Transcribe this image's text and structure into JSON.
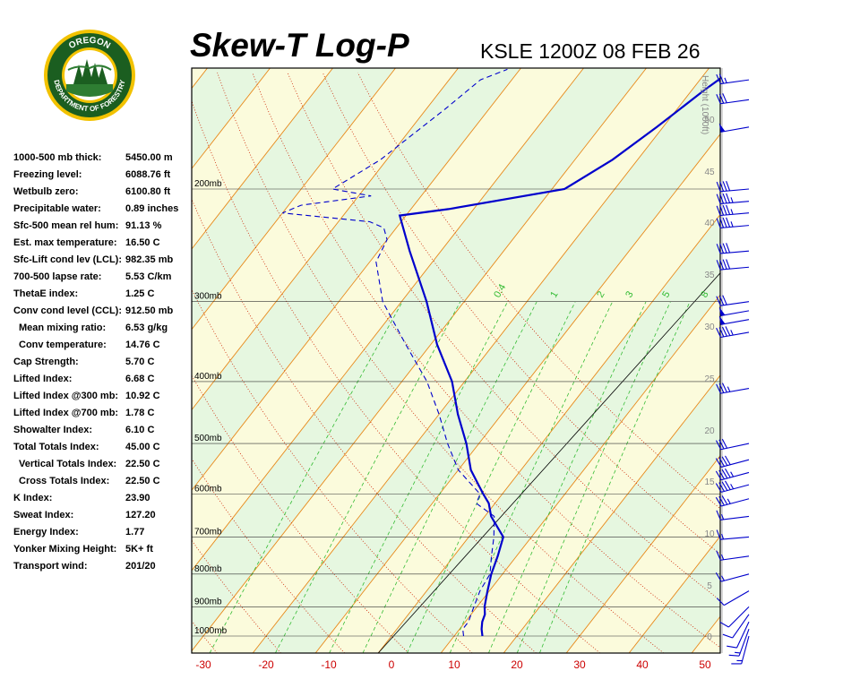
{
  "header": {
    "title": "Skew-T Log-P",
    "subtitle": "KSLE 1200Z 08 FEB 26"
  },
  "logo": {
    "top_text": "OREGON",
    "bottom_text": "DEPARTMENT OF FORESTRY",
    "colors": {
      "ring": "#1b5e20",
      "gold": "#f2c200"
    }
  },
  "stats": [
    {
      "label": "1000-500 mb thick:",
      "value": "5450.00 m",
      "indent": false
    },
    {
      "label": "Freezing level:",
      "value": "6088.76 ft",
      "indent": false
    },
    {
      "label": "Wetbulb zero:",
      "value": "6100.80 ft",
      "indent": false
    },
    {
      "label": "Precipitable water:",
      "value": "0.89 inches",
      "indent": false
    },
    {
      "label": "Sfc-500 mean rel hum:",
      "value": "91.13 %",
      "indent": false
    },
    {
      "label": "Est. max temperature:",
      "value": "16.50 C",
      "indent": false
    },
    {
      "label": "Sfc-Lift cond lev (LCL):",
      "value": "982.35 mb",
      "indent": false
    },
    {
      "label": "700-500 lapse rate:",
      "value": "5.53 C/km",
      "indent": false
    },
    {
      "label": "ThetaE index:",
      "value": "1.25 C",
      "indent": false
    },
    {
      "label": "Conv cond level (CCL):",
      "value": "912.50 mb",
      "indent": false
    },
    {
      "label": "Mean mixing ratio:",
      "value": "6.53 g/kg",
      "indent": true
    },
    {
      "label": "Conv temperature:",
      "value": "14.76 C",
      "indent": true
    },
    {
      "label": "Cap Strength:",
      "value": "5.70 C",
      "indent": false
    },
    {
      "label": "Lifted Index:",
      "value": "6.68 C",
      "indent": false
    },
    {
      "label": "Lifted Index @300 mb:",
      "value": "10.92 C",
      "indent": false
    },
    {
      "label": "Lifted Index @700 mb:",
      "value": "1.78 C",
      "indent": false
    },
    {
      "label": "Showalter Index:",
      "value": "6.10 C",
      "indent": false
    },
    {
      "label": "Total Totals Index:",
      "value": "45.00 C",
      "indent": false
    },
    {
      "label": "Vertical Totals Index:",
      "value": "22.50 C",
      "indent": true
    },
    {
      "label": "Cross Totals Index:",
      "value": "22.50 C",
      "indent": true
    },
    {
      "label": "K Index:",
      "value": "23.90",
      "indent": false
    },
    {
      "label": "Sweat Index:",
      "value": "127.20",
      "indent": false
    },
    {
      "label": "Energy Index:",
      "value": "1.77",
      "indent": false
    },
    {
      "label": "Yonker Mixing Height:",
      "value": "5K+ ft",
      "indent": false
    },
    {
      "label": "Transport wind:",
      "value": "201/20",
      "indent": false
    }
  ],
  "chart_data": {
    "type": "line",
    "title": "Skew-T Log-P",
    "subtitle": "KSLE 1200Z 08 FEB 26",
    "xlabel": "",
    "ylabel": "",
    "x_ticks": [
      "-30",
      "-20",
      "-10",
      "0",
      "10",
      "20",
      "30",
      "40",
      "50"
    ],
    "x_tick_values": [
      -30,
      -20,
      -10,
      0,
      10,
      20,
      30,
      40,
      50
    ],
    "xlim": [
      -31,
      52
    ],
    "pressure_labels": [
      {
        "p": 1000,
        "label": "1000mb"
      },
      {
        "p": 900,
        "label": "900mb"
      },
      {
        "p": 800,
        "label": "800mb"
      },
      {
        "p": 700,
        "label": "700mb"
      },
      {
        "p": 600,
        "label": "600mb"
      },
      {
        "p": 500,
        "label": "500mb"
      },
      {
        "p": 400,
        "label": "400mb"
      },
      {
        "p": 300,
        "label": "300mb"
      },
      {
        "p": 200,
        "label": "200mb"
      }
    ],
    "height_axis": {
      "label": "Height (1000ft)",
      "ticks": [
        "0",
        "5",
        "10",
        "15",
        "20",
        "25",
        "30",
        "35",
        "40",
        "45",
        "50"
      ],
      "tick_values": [
        0,
        5,
        10,
        15,
        20,
        25,
        30,
        35,
        40,
        45,
        50
      ]
    },
    "mixing_ratio_labels": [
      "0.4",
      "1",
      "2",
      "3",
      "5",
      "8"
    ],
    "colors": {
      "temperature": "#0000cc",
      "dewpoint": "#0000cc",
      "dry_adiabat": "#e8891a",
      "moist_adiabat": "#cc2200",
      "mixing_ratio": "#33bb33",
      "isotherm_band_a": "#e6f7e0",
      "isotherm_band_b": "#fbfbdc",
      "wind_barb": "#0000cc",
      "tick_labels": "#cc0000"
    },
    "series": [
      {
        "name": "",
        "kind": "temperature",
        "points": [
          {
            "p": 1000,
            "t": 14.5
          },
          {
            "p": 975,
            "t": 13.5
          },
          {
            "p": 950,
            "t": 12.7
          },
          {
            "p": 925,
            "t": 12.2
          },
          {
            "p": 900,
            "t": 11.2
          },
          {
            "p": 850,
            "t": 9.7
          },
          {
            "p": 800,
            "t": 8.2
          },
          {
            "p": 750,
            "t": 7.0
          },
          {
            "p": 700,
            "t": 5.5
          },
          {
            "p": 650,
            "t": 1.0
          },
          {
            "p": 620,
            "t": -1.0
          },
          {
            "p": 600,
            "t": -3.0
          },
          {
            "p": 550,
            "t": -8.0
          },
          {
            "p": 500,
            "t": -12.0
          },
          {
            "p": 450,
            "t": -17.0
          },
          {
            "p": 400,
            "t": -22.0
          },
          {
            "p": 350,
            "t": -29.0
          },
          {
            "p": 300,
            "t": -36.0
          },
          {
            "p": 250,
            "t": -45.0
          },
          {
            "p": 220,
            "t": -51.0
          },
          {
            "p": 215,
            "t": -44.0
          },
          {
            "p": 200,
            "t": -28.0
          },
          {
            "p": 180,
            "t": -24.0
          },
          {
            "p": 160,
            "t": -21.0
          },
          {
            "p": 140,
            "t": -18.0
          },
          {
            "p": 130,
            "t": -16.0
          }
        ]
      },
      {
        "name": "",
        "kind": "dewpoint",
        "points": [
          {
            "p": 1000,
            "t": 11.5
          },
          {
            "p": 975,
            "t": 10.5
          },
          {
            "p": 950,
            "t": 10.5
          },
          {
            "p": 925,
            "t": 10.0
          },
          {
            "p": 900,
            "t": 9.5
          },
          {
            "p": 850,
            "t": 8.5
          },
          {
            "p": 800,
            "t": 8.0
          },
          {
            "p": 750,
            "t": 6.0
          },
          {
            "p": 700,
            "t": 4.0
          },
          {
            "p": 650,
            "t": 1.5
          },
          {
            "p": 620,
            "t": -3.0
          },
          {
            "p": 600,
            "t": -3.5
          },
          {
            "p": 550,
            "t": -10.0
          },
          {
            "p": 500,
            "t": -15.0
          },
          {
            "p": 450,
            "t": -20.0
          },
          {
            "p": 400,
            "t": -26.0
          },
          {
            "p": 350,
            "t": -34.0
          },
          {
            "p": 300,
            "t": -43.0
          },
          {
            "p": 260,
            "t": -49.0
          },
          {
            "p": 240,
            "t": -50.0
          },
          {
            "p": 230,
            "t": -52.0
          },
          {
            "p": 225,
            "t": -55.0
          },
          {
            "p": 218,
            "t": -70.0
          },
          {
            "p": 212,
            "t": -68.0
          },
          {
            "p": 205,
            "t": -58.0
          },
          {
            "p": 200,
            "t": -65.0
          },
          {
            "p": 180,
            "t": -61.0
          },
          {
            "p": 150,
            "t": -57.0
          },
          {
            "p": 135,
            "t": -55.0
          },
          {
            "p": 130,
            "t": -52.0
          }
        ]
      }
    ],
    "wind_barbs": [
      {
        "p": 1000,
        "dir": 195,
        "spd": 15
      },
      {
        "p": 975,
        "dir": 200,
        "spd": 15
      },
      {
        "p": 950,
        "dir": 205,
        "spd": 10
      },
      {
        "p": 925,
        "dir": 215,
        "spd": 10
      },
      {
        "p": 900,
        "dir": 225,
        "spd": 10
      },
      {
        "p": 850,
        "dir": 240,
        "spd": 10
      },
      {
        "p": 800,
        "dir": 255,
        "spd": 15
      },
      {
        "p": 750,
        "dir": 262,
        "spd": 15
      },
      {
        "p": 700,
        "dir": 265,
        "spd": 15
      },
      {
        "p": 650,
        "dir": 263,
        "spd": 15
      },
      {
        "p": 610,
        "dir": 255,
        "spd": 35
      },
      {
        "p": 580,
        "dir": 255,
        "spd": 45
      },
      {
        "p": 555,
        "dir": 255,
        "spd": 45
      },
      {
        "p": 530,
        "dir": 255,
        "spd": 40
      },
      {
        "p": 500,
        "dir": 258,
        "spd": 30
      },
      {
        "p": 410,
        "dir": 260,
        "spd": 35
      },
      {
        "p": 335,
        "dir": 260,
        "spd": 45
      },
      {
        "p": 320,
        "dir": 260,
        "spd": 50
      },
      {
        "p": 310,
        "dir": 260,
        "spd": 50
      },
      {
        "p": 300,
        "dir": 262,
        "spd": 30
      },
      {
        "p": 265,
        "dir": 265,
        "spd": 40
      },
      {
        "p": 250,
        "dir": 265,
        "spd": 40
      },
      {
        "p": 228,
        "dir": 265,
        "spd": 45
      },
      {
        "p": 218,
        "dir": 265,
        "spd": 45
      },
      {
        "p": 209,
        "dir": 265,
        "spd": 45
      },
      {
        "p": 200,
        "dir": 265,
        "spd": 40
      },
      {
        "p": 160,
        "dir": 260,
        "spd": 50
      },
      {
        "p": 145,
        "dir": 262,
        "spd": 30
      },
      {
        "p": 135,
        "dir": 262,
        "spd": 25
      }
    ]
  }
}
